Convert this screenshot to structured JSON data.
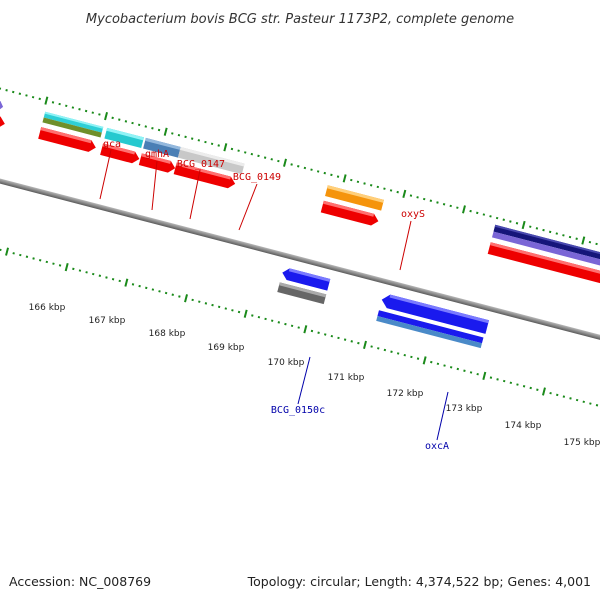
{
  "header": {
    "title": "Mycobacterium bovis BCG str. Pasteur 1173P2, complete genome"
  },
  "footer": {
    "accession": "Accession: NC_008769",
    "summary": "Topology: circular; Length: 4,374,522 bp; Genes: 4,001"
  },
  "ruler": {
    "labels": [
      "166 kbp",
      "167 kbp",
      "168 kbp",
      "169 kbp",
      "170 kbp",
      "171 kbp",
      "172 kbp",
      "173 kbp",
      "174 kbp",
      "175 kbp"
    ]
  },
  "colors": {
    "backbone": "#8a8a8a",
    "tick": "#1a8a1a",
    "forward_label": "#cc0000",
    "reverse_label": "#0000aa",
    "cds": "#ee0000"
  },
  "genes": [
    {
      "label": "gca",
      "strand": "forward",
      "color": "#2ecfd6"
    },
    {
      "label": "gmhA",
      "strand": "forward",
      "color": "#26c9cf"
    },
    {
      "label": "BCG_0147",
      "strand": "forward",
      "color": "#4a7fb5"
    },
    {
      "label": "BCG_0149",
      "strand": "forward",
      "color": "#c8c8c8"
    },
    {
      "label": "oxyS",
      "strand": "forward",
      "color": "#f5940c"
    },
    {
      "label": "BCG_0150c",
      "strand": "reverse",
      "color": "#1a1aee"
    },
    {
      "label": "oxcA",
      "strand": "reverse",
      "color": "#1a1aee"
    }
  ]
}
